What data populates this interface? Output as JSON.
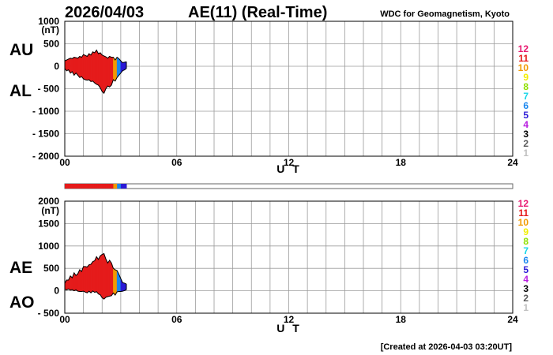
{
  "header": {
    "date": "2026/04/03",
    "title": "AE(11) (Real-Time)",
    "source": "WDC for Geomagnetism, Kyoto"
  },
  "footer": {
    "created": "[Created at 2026-04-03 03:20UT]"
  },
  "station_counts": {
    "labels": [
      "12",
      "11",
      "10",
      "9",
      "8",
      "7",
      "6",
      "5",
      "4",
      "3",
      "2",
      "1"
    ],
    "colors": [
      "#e8176f",
      "#e51b1b",
      "#f29a00",
      "#f2ee00",
      "#8fe000",
      "#17d6e8",
      "#1a87ef",
      "#2b1ad6",
      "#b91ee0",
      "#000000",
      "#5a5a5a",
      "#c0c0c0"
    ]
  },
  "chart_data": [
    {
      "type": "area",
      "panel": "AU/AL",
      "xlabel": "U T",
      "ylabel": "(nT)",
      "side_labels": [
        "AU",
        "AL"
      ],
      "x_ticks": [
        "00",
        "06",
        "12",
        "18",
        "24"
      ],
      "y_ticks": [
        "1000",
        "500",
        "0",
        "- 500",
        "- 1000",
        "- 1500",
        "- 2000"
      ],
      "xlim": [
        0,
        24
      ],
      "ylim": [
        -2000,
        1000
      ],
      "grid": true,
      "x_hours": [
        0,
        0.1,
        0.2,
        0.3,
        0.4,
        0.5,
        0.6,
        0.7,
        0.8,
        0.9,
        1.0,
        1.1,
        1.2,
        1.3,
        1.4,
        1.5,
        1.6,
        1.7,
        1.8,
        1.9,
        2.0,
        2.1,
        2.2,
        2.3,
        2.4,
        2.5,
        2.6,
        2.7,
        2.8,
        2.9,
        3.0,
        3.1,
        3.2,
        3.3
      ],
      "upper": [
        120,
        140,
        160,
        180,
        170,
        200,
        190,
        180,
        220,
        200,
        260,
        240,
        220,
        280,
        250,
        320,
        300,
        360,
        280,
        300,
        250,
        230,
        210,
        180,
        220,
        200,
        200,
        140,
        200,
        170,
        120,
        80,
        90,
        100
      ],
      "lower": [
        -50,
        -100,
        -80,
        -150,
        -120,
        -200,
        -150,
        -200,
        -250,
        -230,
        -280,
        -300,
        -310,
        -300,
        -340,
        -330,
        -370,
        -400,
        -420,
        -480,
        -560,
        -600,
        -500,
        -440,
        -460,
        -420,
        -300,
        -330,
        -250,
        -200,
        -150,
        -100,
        -80,
        -50
      ],
      "count_colors": [
        "#e51b1b",
        "#e51b1b",
        "#e51b1b",
        "#e51b1b",
        "#e51b1b",
        "#e51b1b",
        "#e51b1b",
        "#e51b1b",
        "#e51b1b",
        "#e51b1b",
        "#e51b1b",
        "#e51b1b",
        "#e51b1b",
        "#e51b1b",
        "#e51b1b",
        "#e51b1b",
        "#e51b1b",
        "#e51b1b",
        "#e51b1b",
        "#e51b1b",
        "#e51b1b",
        "#e51b1b",
        "#e51b1b",
        "#e51b1b",
        "#e51b1b",
        "#e51b1b",
        "#f29a00",
        "#f29a00",
        "#1a87ef",
        "#1a87ef",
        "#2b1ad6",
        "#2b1ad6",
        "#2b1ad6",
        "#2b1ad6"
      ]
    },
    {
      "type": "area",
      "panel": "AE/AO",
      "xlabel": "U T",
      "ylabel": "(nT)",
      "side_labels": [
        "AE",
        "AO"
      ],
      "x_ticks": [
        "00",
        "06",
        "12",
        "18",
        "24"
      ],
      "y_ticks": [
        "2000",
        "1500",
        "1000",
        "500",
        "0",
        "- 500"
      ],
      "xlim": [
        0,
        24
      ],
      "ylim": [
        -500,
        2000
      ],
      "grid": true,
      "x_hours": [
        0,
        0.1,
        0.2,
        0.3,
        0.4,
        0.5,
        0.6,
        0.7,
        0.8,
        0.9,
        1.0,
        1.1,
        1.2,
        1.3,
        1.4,
        1.5,
        1.6,
        1.7,
        1.8,
        1.9,
        2.0,
        2.1,
        2.2,
        2.3,
        2.4,
        2.5,
        2.6,
        2.7,
        2.8,
        2.9,
        3.0,
        3.1,
        3.2,
        3.3
      ],
      "ae": [
        170,
        240,
        240,
        330,
        290,
        400,
        340,
        380,
        470,
        430,
        540,
        540,
        530,
        580,
        590,
        650,
        670,
        760,
        700,
        780,
        810,
        830,
        710,
        620,
        680,
        620,
        500,
        470,
        450,
        370,
        270,
        180,
        170,
        150
      ],
      "ao": [
        35,
        20,
        40,
        15,
        25,
        0,
        20,
        -10,
        -15,
        -15,
        -10,
        -30,
        -45,
        -10,
        -45,
        -5,
        -35,
        -20,
        -70,
        -90,
        -155,
        -185,
        -145,
        -130,
        -120,
        -110,
        -50,
        -95,
        -25,
        -15,
        -15,
        -10,
        5,
        25
      ],
      "count_colors": [
        "#e51b1b",
        "#e51b1b",
        "#e51b1b",
        "#e51b1b",
        "#e51b1b",
        "#e51b1b",
        "#e51b1b",
        "#e51b1b",
        "#e51b1b",
        "#e51b1b",
        "#e51b1b",
        "#e51b1b",
        "#e51b1b",
        "#e51b1b",
        "#e51b1b",
        "#e51b1b",
        "#e51b1b",
        "#e51b1b",
        "#e51b1b",
        "#e51b1b",
        "#e51b1b",
        "#e51b1b",
        "#e51b1b",
        "#e51b1b",
        "#e51b1b",
        "#e51b1b",
        "#f29a00",
        "#f29a00",
        "#1a87ef",
        "#1a87ef",
        "#2b1ad6",
        "#2b1ad6",
        "#2b1ad6",
        "#2b1ad6"
      ]
    }
  ]
}
